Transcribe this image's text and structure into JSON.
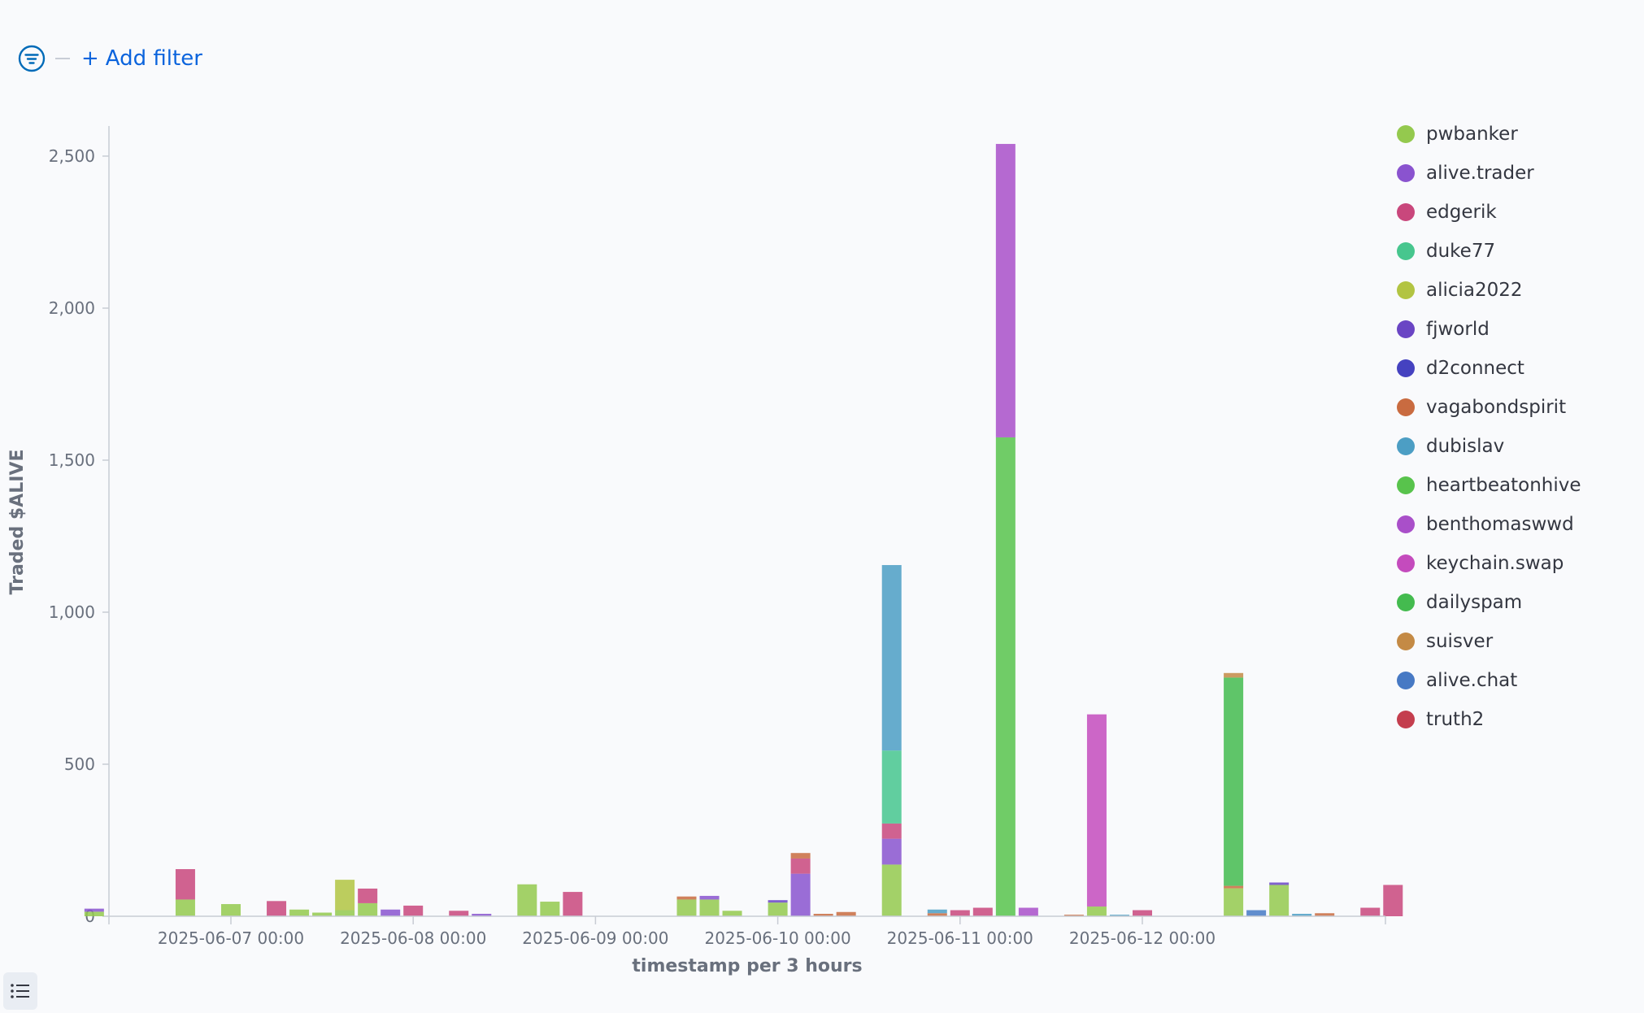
{
  "filter": {
    "add_label": "Add filter",
    "plus": "+"
  },
  "icons": {
    "filter": "filter-icon",
    "list": "list-icon"
  },
  "chart_data": {
    "type": "bar",
    "stacked": true,
    "xlabel": "timestamp per 3 hours",
    "ylabel": "Traded $ALIVE",
    "ylim": [
      0,
      2600
    ],
    "yticks": [
      0,
      500,
      1000,
      1500,
      2000,
      2500
    ],
    "ytick_labels": [
      "0",
      "500",
      "1,000",
      "1,500",
      "2,000",
      "2,500"
    ],
    "x_tick_labels": [
      "2025-06-07 00:00",
      "2025-06-08 00:00",
      "2025-06-09 00:00",
      "2025-06-10 00:00",
      "2025-06-11 00:00",
      "2025-06-12 00:00"
    ],
    "legend_position": "right",
    "series": [
      {
        "name": "pwbanker",
        "color": "#94c94e"
      },
      {
        "name": "alive.trader",
        "color": "#8a53cf"
      },
      {
        "name": "edgerik",
        "color": "#c9477c"
      },
      {
        "name": "duke77",
        "color": "#47c68e"
      },
      {
        "name": "alicia2022",
        "color": "#b2c442"
      },
      {
        "name": "fjworld",
        "color": "#6a45c4"
      },
      {
        "name": "d2connect",
        "color": "#4542c0"
      },
      {
        "name": "vagabondspirit",
        "color": "#c96b40"
      },
      {
        "name": "dubislav",
        "color": "#4c9ec4"
      },
      {
        "name": "heartbeatonhive",
        "color": "#58c34c"
      },
      {
        "name": "benthomaswwd",
        "color": "#a94fc9"
      },
      {
        "name": "keychain.swap",
        "color": "#c44bbd"
      },
      {
        "name": "dailyspam",
        "color": "#44bb4f"
      },
      {
        "name": "suisver",
        "color": "#c48a45"
      },
      {
        "name": "alive.chat",
        "color": "#4779c4"
      },
      {
        "name": "truth2",
        "color": "#c43e4e"
      }
    ],
    "bars": [
      {
        "x": "2025-06-06 06:00",
        "segments": [
          {
            "series": "pwbanker",
            "value": 15
          },
          {
            "series": "alive.trader",
            "value": 10
          }
        ]
      },
      {
        "x": "2025-06-06 18:00",
        "segments": [
          {
            "series": "pwbanker",
            "value": 55
          },
          {
            "series": "edgerik",
            "value": 100
          }
        ]
      },
      {
        "x": "2025-06-07 00:00",
        "segments": [
          {
            "series": "pwbanker",
            "value": 40
          }
        ]
      },
      {
        "x": "2025-06-07 06:00",
        "segments": [
          {
            "series": "edgerik",
            "value": 50
          }
        ]
      },
      {
        "x": "2025-06-07 09:00",
        "segments": [
          {
            "series": "pwbanker",
            "value": 22
          }
        ]
      },
      {
        "x": "2025-06-07 12:00",
        "segments": [
          {
            "series": "pwbanker",
            "value": 12
          }
        ]
      },
      {
        "x": "2025-06-07 15:00",
        "segments": [
          {
            "series": "pwbanker",
            "value": 20
          },
          {
            "series": "alicia2022",
            "value": 100
          }
        ]
      },
      {
        "x": "2025-06-07 18:00",
        "segments": [
          {
            "series": "pwbanker",
            "value": 43
          },
          {
            "series": "edgerik",
            "value": 48
          }
        ]
      },
      {
        "x": "2025-06-07 21:00",
        "segments": [
          {
            "series": "alive.trader",
            "value": 22
          }
        ]
      },
      {
        "x": "2025-06-08 00:00",
        "segments": [
          {
            "series": "edgerik",
            "value": 35
          }
        ]
      },
      {
        "x": "2025-06-08 06:00",
        "segments": [
          {
            "series": "edgerik",
            "value": 18
          }
        ]
      },
      {
        "x": "2025-06-08 09:00",
        "segments": [
          {
            "series": "alive.trader",
            "value": 8
          }
        ]
      },
      {
        "x": "2025-06-08 15:00",
        "segments": [
          {
            "series": "pwbanker",
            "value": 105
          }
        ]
      },
      {
        "x": "2025-06-08 18:00",
        "segments": [
          {
            "series": "pwbanker",
            "value": 48
          }
        ]
      },
      {
        "x": "2025-06-08 21:00",
        "segments": [
          {
            "series": "edgerik",
            "value": 80
          }
        ]
      },
      {
        "x": "2025-06-09 12:00",
        "segments": [
          {
            "series": "pwbanker",
            "value": 55
          },
          {
            "series": "vagabondspirit",
            "value": 10
          }
        ]
      },
      {
        "x": "2025-06-09 15:00",
        "segments": [
          {
            "series": "pwbanker",
            "value": 55
          },
          {
            "series": "alive.trader",
            "value": 12
          }
        ]
      },
      {
        "x": "2025-06-09 18:00",
        "segments": [
          {
            "series": "pwbanker",
            "value": 18
          }
        ]
      },
      {
        "x": "2025-06-10 00:00",
        "segments": [
          {
            "series": "pwbanker",
            "value": 45
          },
          {
            "series": "fjworld",
            "value": 8
          }
        ]
      },
      {
        "x": "2025-06-10 03:00",
        "segments": [
          {
            "series": "alive.trader",
            "value": 140
          },
          {
            "series": "edgerik",
            "value": 50
          },
          {
            "series": "vagabondspirit",
            "value": 18
          }
        ]
      },
      {
        "x": "2025-06-10 06:00",
        "segments": [
          {
            "series": "vagabondspirit",
            "value": 8
          }
        ]
      },
      {
        "x": "2025-06-10 09:00",
        "segments": [
          {
            "series": "vagabondspirit",
            "value": 14
          }
        ]
      },
      {
        "x": "2025-06-10 15:00",
        "segments": [
          {
            "series": "pwbanker",
            "value": 170
          },
          {
            "series": "alive.trader",
            "value": 85
          },
          {
            "series": "edgerik",
            "value": 50
          },
          {
            "series": "duke77",
            "value": 240
          },
          {
            "series": "dubislav",
            "value": 610
          }
        ]
      },
      {
        "x": "2025-06-10 21:00",
        "segments": [
          {
            "series": "vagabondspirit",
            "value": 10
          },
          {
            "series": "dubislav",
            "value": 12
          }
        ]
      },
      {
        "x": "2025-06-11 00:00",
        "segments": [
          {
            "series": "edgerik",
            "value": 20
          }
        ]
      },
      {
        "x": "2025-06-11 03:00",
        "segments": [
          {
            "series": "edgerik",
            "value": 28
          }
        ]
      },
      {
        "x": "2025-06-11 06:00",
        "segments": [
          {
            "series": "heartbeatonhive",
            "value": 1575
          },
          {
            "series": "benthomaswwd",
            "value": 965
          }
        ]
      },
      {
        "x": "2025-06-11 09:00",
        "segments": [
          {
            "series": "benthomaswwd",
            "value": 28
          }
        ]
      },
      {
        "x": "2025-06-11 15:00",
        "segments": [
          {
            "series": "vagabondspirit",
            "value": 5
          }
        ]
      },
      {
        "x": "2025-06-11 18:00",
        "segments": [
          {
            "series": "pwbanker",
            "value": 32
          },
          {
            "series": "keychain.swap",
            "value": 632
          }
        ]
      },
      {
        "x": "2025-06-11 21:00",
        "segments": [
          {
            "series": "dubislav",
            "value": 5
          }
        ]
      },
      {
        "x": "2025-06-12 00:00",
        "segments": [
          {
            "series": "edgerik",
            "value": 20
          }
        ]
      },
      {
        "x": "2025-06-12 12:00",
        "segments": [
          {
            "series": "pwbanker",
            "value": 92
          },
          {
            "series": "vagabondspirit",
            "value": 8
          },
          {
            "series": "dailyspam",
            "value": 685
          },
          {
            "series": "suisver",
            "value": 15
          }
        ]
      },
      {
        "x": "2025-06-12 15:00",
        "segments": [
          {
            "series": "alive.chat",
            "value": 20
          }
        ]
      },
      {
        "x": "2025-06-12 18:00",
        "segments": [
          {
            "series": "pwbanker",
            "value": 103
          },
          {
            "series": "fjworld",
            "value": 8
          }
        ]
      },
      {
        "x": "2025-06-12 21:00",
        "segments": [
          {
            "series": "dubislav",
            "value": 8
          }
        ]
      },
      {
        "x": "2025-06-13 00:00",
        "segments": [
          {
            "series": "vagabondspirit",
            "value": 10
          }
        ]
      },
      {
        "x": "2025-06-13 06:00",
        "segments": [
          {
            "series": "edgerik",
            "value": 28
          }
        ]
      },
      {
        "x": "2025-06-13 09:00",
        "segments": [
          {
            "series": "edgerik",
            "value": 103
          }
        ]
      }
    ]
  }
}
